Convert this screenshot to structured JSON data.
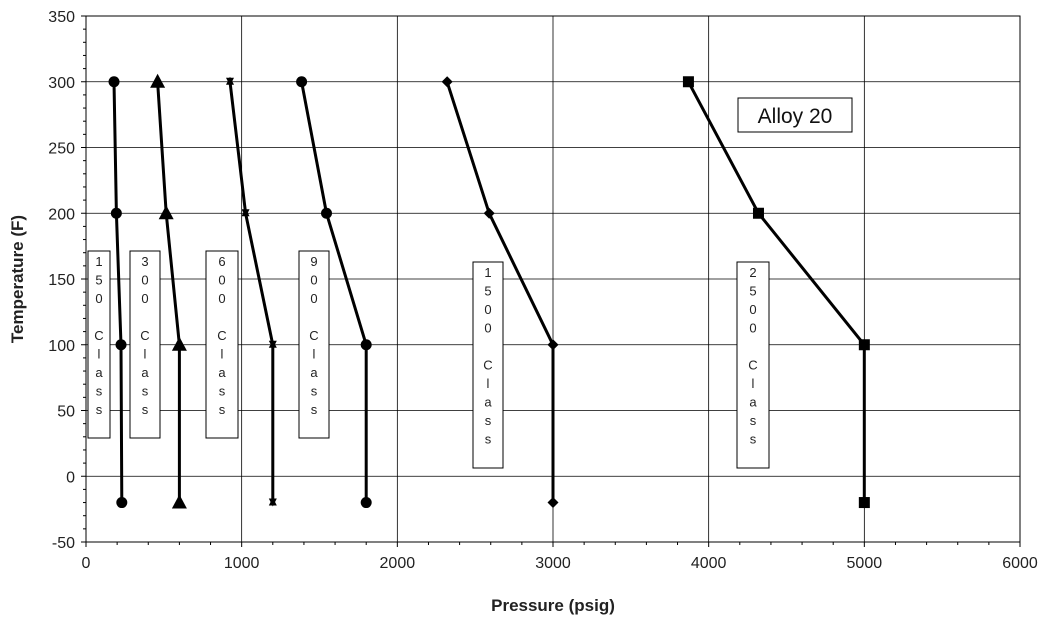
{
  "chart_data": {
    "type": "line",
    "title": "",
    "xlabel": "Pressure (psig)",
    "ylabel": "Temperature (F)",
    "xlim": [
      0,
      6000
    ],
    "ylim": [
      -50,
      350
    ],
    "xticks": [
      "0",
      "1000",
      "2000",
      "3000",
      "4000",
      "5000",
      "6000"
    ],
    "yticks": [
      "-50",
      "0",
      "50",
      "100",
      "150",
      "200",
      "250",
      "300",
      "350"
    ],
    "grid": true,
    "line_color": "#000000",
    "annotation": "Alloy 20",
    "series": [
      {
        "label": "150 Class",
        "marker": "circle",
        "x": [
          180,
          195,
          225,
          230
        ],
        "y": [
          300,
          200,
          100,
          -20
        ]
      },
      {
        "label": "300 Class",
        "marker": "triangle",
        "x": [
          460,
          515,
          600,
          600
        ],
        "y": [
          300,
          200,
          100,
          -20
        ]
      },
      {
        "label": "600 Class",
        "marker": "star",
        "x": [
          925,
          1025,
          1200,
          1200
        ],
        "y": [
          300,
          200,
          100,
          -20
        ]
      },
      {
        "label": "900 Class",
        "marker": "circle",
        "x": [
          1385,
          1545,
          1800,
          1800
        ],
        "y": [
          300,
          200,
          100,
          -20
        ]
      },
      {
        "label": "1500 Class",
        "marker": "diamond",
        "x": [
          2320,
          2590,
          3000,
          3000
        ],
        "y": [
          300,
          200,
          100,
          -20
        ]
      },
      {
        "label": "2500 Class",
        "marker": "square",
        "x": [
          3870,
          4320,
          5000,
          5000
        ],
        "y": [
          300,
          200,
          100,
          -20
        ]
      }
    ]
  }
}
